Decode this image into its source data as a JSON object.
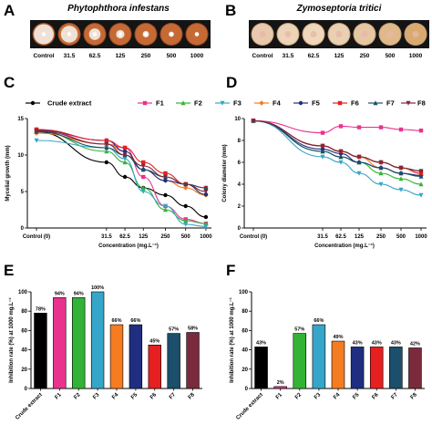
{
  "panels": {
    "A": {
      "letter": "A",
      "title": "Phytophthora infestans",
      "labels": [
        "Control",
        "31.5",
        "62.5",
        "125",
        "250",
        "500",
        "1000"
      ],
      "colony_fraction": [
        0.95,
        0.8,
        0.55,
        0.4,
        0.3,
        0.25,
        0.2
      ]
    },
    "B": {
      "letter": "B",
      "title": "Zymoseptoria tritici",
      "labels": [
        "Control",
        "31.5",
        "62.5",
        "125",
        "250",
        "500",
        "1000"
      ]
    }
  },
  "legend": [
    "Crude extract",
    "F1",
    "F2",
    "F3",
    "F4",
    "F5",
    "F6",
    "F7",
    "F8"
  ],
  "series_colors": [
    "#000000",
    "#e8338e",
    "#33b336",
    "#35a6c9",
    "#f57c21",
    "#1f2e80",
    "#e62020",
    "#1b4f6b",
    "#7a2a3c"
  ],
  "series_markers": [
    "circle",
    "square",
    "triangle-up",
    "triangle-down",
    "diamond",
    "circle",
    "square",
    "triangle-up",
    "triangle-down"
  ],
  "chart_data": [
    {
      "panel": "C",
      "letter": "C",
      "type": "line",
      "xlabel": "Concentration (mg.L⁻¹)",
      "ylabel": "Mycelial growth (mm)",
      "x_ticks": [
        "Control (0)",
        "31.5",
        "62.5",
        "125",
        "250",
        "500",
        "1000"
      ],
      "ylim": [
        0,
        15
      ],
      "y_ticks": [
        0,
        5,
        10,
        15
      ],
      "series": [
        {
          "name": "Crude extract",
          "values": [
            13.2,
            9.0,
            7.0,
            5.5,
            4.5,
            3.0,
            1.5
          ]
        },
        {
          "name": "F1",
          "values": [
            13.5,
            11.5,
            11.0,
            7.0,
            3.0,
            1.2,
            0.6
          ]
        },
        {
          "name": "F2",
          "values": [
            13.3,
            10.5,
            9.0,
            5.5,
            2.5,
            1.0,
            0.6
          ]
        },
        {
          "name": "F3",
          "values": [
            12.0,
            11.0,
            9.5,
            5.0,
            3.0,
            0.5,
            0.2
          ]
        },
        {
          "name": "F4",
          "values": [
            13.0,
            11.5,
            10.5,
            8.0,
            6.5,
            5.5,
            4.5
          ]
        },
        {
          "name": "F5",
          "values": [
            13.4,
            12.0,
            10.5,
            8.0,
            6.5,
            6.0,
            4.6
          ]
        },
        {
          "name": "F6",
          "values": [
            13.5,
            12.0,
            11.0,
            9.0,
            7.5,
            6.0,
            5.5
          ]
        },
        {
          "name": "F7",
          "values": [
            13.2,
            11.0,
            10.0,
            8.0,
            7.0,
            6.0,
            5.5
          ]
        },
        {
          "name": "F8",
          "values": [
            13.3,
            11.5,
            10.0,
            8.5,
            7.0,
            6.0,
            5.0
          ]
        }
      ]
    },
    {
      "panel": "D",
      "letter": "D",
      "type": "line",
      "xlabel": "Concentration (mg.L⁻¹)",
      "ylabel": "Colony diameter (mm)",
      "x_ticks": [
        "Control (0)",
        "31.5",
        "62.5",
        "125",
        "250",
        "500",
        "1000"
      ],
      "ylim": [
        0,
        10
      ],
      "y_ticks": [
        0,
        2,
        4,
        6,
        8,
        10
      ],
      "series": [
        {
          "name": "Crude extract",
          "values": [
            9.8,
            7.5,
            7.0,
            6.5,
            6.0,
            5.5,
            5.2
          ]
        },
        {
          "name": "F1",
          "values": [
            9.8,
            8.7,
            9.3,
            9.2,
            9.2,
            9.0,
            8.9
          ]
        },
        {
          "name": "F2",
          "values": [
            9.8,
            7.0,
            6.5,
            6.0,
            5.0,
            4.5,
            4.0
          ]
        },
        {
          "name": "F3",
          "values": [
            9.8,
            6.5,
            6.0,
            5.0,
            4.0,
            3.5,
            3.0
          ]
        },
        {
          "name": "F4",
          "values": [
            9.8,
            7.5,
            7.0,
            6.5,
            5.5,
            5.0,
            4.8
          ]
        },
        {
          "name": "F5",
          "values": [
            9.8,
            7.2,
            6.8,
            6.0,
            5.5,
            5.0,
            4.8
          ]
        },
        {
          "name": "F6",
          "values": [
            9.8,
            7.5,
            7.0,
            6.5,
            6.0,
            5.5,
            5.0
          ]
        },
        {
          "name": "F7",
          "values": [
            9.8,
            7.0,
            6.5,
            6.0,
            5.5,
            5.0,
            4.7
          ]
        },
        {
          "name": "F8",
          "values": [
            9.8,
            7.5,
            7.0,
            6.5,
            6.0,
            5.5,
            5.2
          ]
        }
      ]
    },
    {
      "panel": "E",
      "letter": "E",
      "type": "bar",
      "ylabel": "Inhibition rate (%) at 1000 mg.L⁻¹",
      "categories": [
        "Crude extract",
        "F1",
        "F2",
        "F3",
        "F4",
        "F5",
        "F6",
        "F7",
        "F8"
      ],
      "values": [
        78,
        94,
        94,
        100,
        66,
        66,
        45,
        57,
        58
      ],
      "labels": [
        "78%",
        "94%",
        "94%",
        "100%",
        "66%",
        "66%",
        "45%",
        "57%",
        "58%"
      ],
      "ylim": [
        0,
        100
      ],
      "y_ticks": [
        0,
        20,
        40,
        60,
        80,
        100
      ]
    },
    {
      "panel": "F",
      "letter": "F",
      "type": "bar",
      "ylabel": "Inhibition rate (%) at 1000 mg.L⁻¹",
      "categories": [
        "Crude extract",
        "F1",
        "F2",
        "F3",
        "F4",
        "F5",
        "F6",
        "F7",
        "F8"
      ],
      "values": [
        43,
        2,
        57,
        66,
        49,
        43,
        43,
        43,
        42
      ],
      "labels": [
        "43%",
        "2%",
        "57%",
        "66%",
        "49%",
        "43%",
        "43%",
        "43%",
        "42%"
      ],
      "ylim": [
        0,
        100
      ],
      "y_ticks": [
        0,
        20,
        40,
        60,
        80,
        100
      ]
    }
  ]
}
